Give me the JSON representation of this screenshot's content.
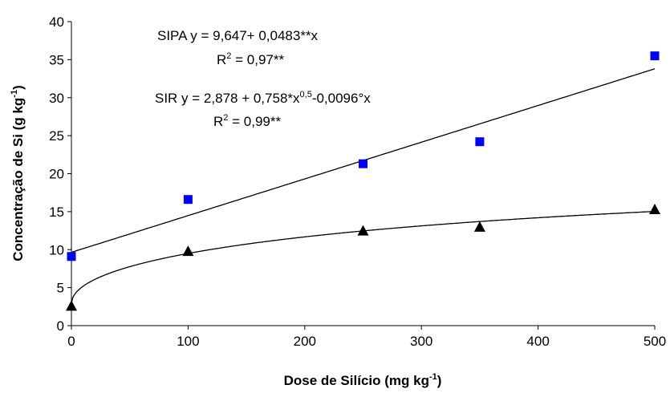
{
  "chart_data": {
    "type": "scatter",
    "xlabel": [
      {
        "text": "Dose de Silício (mg kg"
      },
      {
        "text": "-1",
        "sup": true
      },
      {
        "text": ")"
      }
    ],
    "ylabel": [
      {
        "text": "Concentração de Si (g kg"
      },
      {
        "text": "-1",
        "sup": true
      },
      {
        "text": ")"
      }
    ],
    "xlim": [
      0,
      500
    ],
    "xticks": [
      0,
      100,
      200,
      300,
      400,
      500
    ],
    "ylim": [
      0,
      40
    ],
    "yticks": [
      0,
      5,
      10,
      15,
      20,
      25,
      30,
      35,
      40
    ],
    "grid": false,
    "series": [
      {
        "name": "SIPA",
        "color": "#0000ff",
        "marker": "square",
        "x": [
          0,
          100,
          250,
          350,
          500
        ],
        "values": [
          9.1,
          16.6,
          21.3,
          24.2,
          35.5
        ],
        "trend": [
          [
            9.647,
            0
          ],
          [
            0.0483,
            1
          ]
        ]
      },
      {
        "name": "SIR",
        "color": "#000000",
        "marker": "triangle",
        "x": [
          0,
          100,
          250,
          350,
          500
        ],
        "values": [
          2.6,
          9.8,
          12.5,
          13.0,
          15.3
        ],
        "trend": [
          [
            2.878,
            0
          ],
          [
            0.758,
            0.5
          ],
          [
            -0.0096,
            1
          ]
        ]
      }
    ],
    "annotations": [
      [
        {
          "text": "SIPA y = 9,647+ 0,0483**x"
        }
      ],
      [
        {
          "text": "R"
        },
        {
          "text": "2",
          "sup": true
        },
        {
          "text": " = 0,97**"
        }
      ],
      [
        {
          "text": "SIR y = 2,878 + 0,758*x"
        },
        {
          "text": "0,5",
          "sup": true
        },
        {
          "text": "-0,0096°x"
        }
      ],
      [
        {
          "text": "R"
        },
        {
          "text": "2",
          "sup": true
        },
        {
          "text": " = 0,99**"
        }
      ]
    ]
  }
}
